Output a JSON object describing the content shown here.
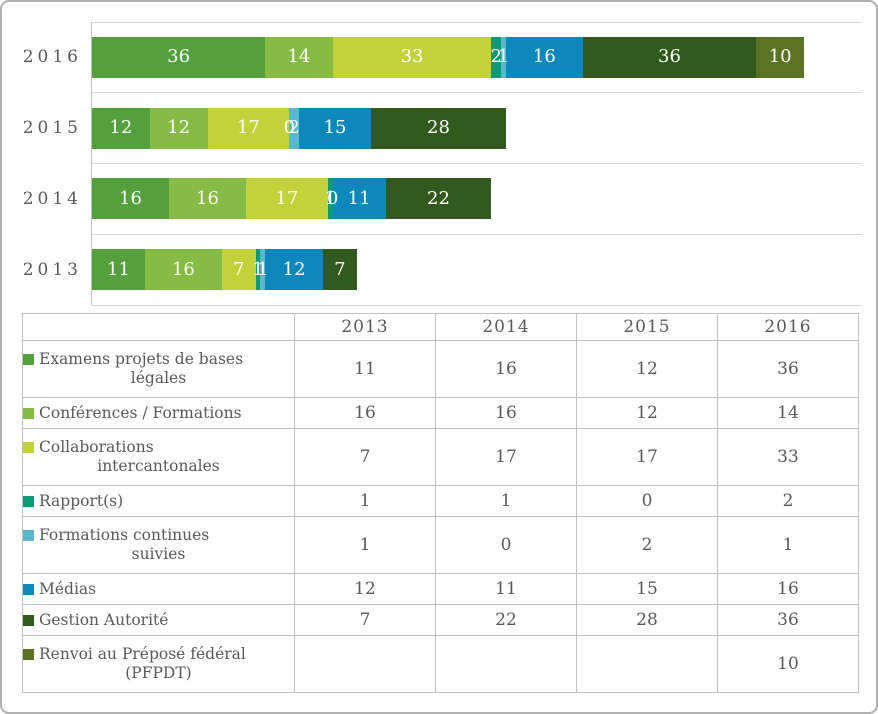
{
  "panel": {
    "background": "#ffffff",
    "border_color": "#b0b0b0"
  },
  "text_color": "#595959",
  "gridline_color": "#d9d9d9",
  "table_border_color": "#bfbfbf",
  "chart_data": {
    "type": "bar",
    "orientation": "horizontal",
    "stacked": true,
    "title": "",
    "categories": [
      "2013",
      "2014",
      "2015",
      "2016"
    ],
    "row_order_top_to_bottom": [
      "2016",
      "2015",
      "2014",
      "2013"
    ],
    "xlim": [
      0,
      160
    ],
    "grid": "horizontal category separator lines, left axis line, no x-axis labels",
    "value_labels": "white, centered inside each segment, zeros shown, blanks hidden",
    "series": [
      {
        "name": "Examens projets de bases légales",
        "color": "#54A03C",
        "values": [
          11,
          16,
          12,
          36
        ]
      },
      {
        "name": "Conférences / Formations",
        "color": "#86BB45",
        "values": [
          16,
          16,
          12,
          14
        ]
      },
      {
        "name": "Collaborations intercantonales",
        "color": "#C3D238",
        "values": [
          7,
          17,
          17,
          33
        ]
      },
      {
        "name": "Rapport(s)",
        "color": "#0C9B77",
        "values": [
          1,
          1,
          0,
          2
        ]
      },
      {
        "name": "Formations continues suivies",
        "color": "#5BB8CC",
        "values": [
          1,
          0,
          2,
          1
        ]
      },
      {
        "name": "Médias",
        "color": "#0D87BC",
        "values": [
          12,
          11,
          15,
          16
        ]
      },
      {
        "name": "Gestion Autorité",
        "color": "#335A1E",
        "values": [
          7,
          22,
          28,
          36
        ]
      },
      {
        "name": "Renvoi au Préposé fédéral (PFPDT)",
        "color": "#5A7322",
        "values": [
          null,
          null,
          null,
          10
        ]
      }
    ]
  },
  "table": {
    "corner_label": "",
    "year_headers": [
      "2013",
      "2014",
      "2015",
      "2016"
    ],
    "rows": [
      {
        "label": "Examens projets de bases légales",
        "label_lines": [
          "Examens projets de bases",
          "légales"
        ],
        "color": "#54A03C",
        "values": [
          "11",
          "16",
          "12",
          "36"
        ]
      },
      {
        "label": "Conférences / Formations",
        "label_lines": [
          "Conférences / Formations"
        ],
        "color": "#86BB45",
        "values": [
          "16",
          "16",
          "12",
          "14"
        ]
      },
      {
        "label": "Collaborations intercantonales",
        "label_lines": [
          "Collaborations",
          "intercantonales"
        ],
        "color": "#C3D238",
        "values": [
          "7",
          "17",
          "17",
          "33"
        ]
      },
      {
        "label": "Rapport(s)",
        "label_lines": [
          "Rapport(s)"
        ],
        "color": "#0C9B77",
        "values": [
          "1",
          "1",
          "0",
          "2"
        ]
      },
      {
        "label": "Formations continues suivies",
        "label_lines": [
          "Formations continues",
          "suivies"
        ],
        "color": "#5BB8CC",
        "values": [
          "1",
          "0",
          "2",
          "1"
        ]
      },
      {
        "label": "Médias",
        "label_lines": [
          "Médias"
        ],
        "color": "#0D87BC",
        "values": [
          "12",
          "11",
          "15",
          "16"
        ]
      },
      {
        "label": "Gestion Autorité",
        "label_lines": [
          "Gestion Autorité"
        ],
        "color": "#335A1E",
        "values": [
          "7",
          "22",
          "28",
          "36"
        ]
      },
      {
        "label": "Renvoi au Préposé fédéral (PFPDT)",
        "label_lines": [
          "Renvoi au Préposé fédéral",
          "(PFPDT)"
        ],
        "color": "#5A7322",
        "values": [
          "",
          "",
          "",
          "10"
        ]
      }
    ]
  }
}
